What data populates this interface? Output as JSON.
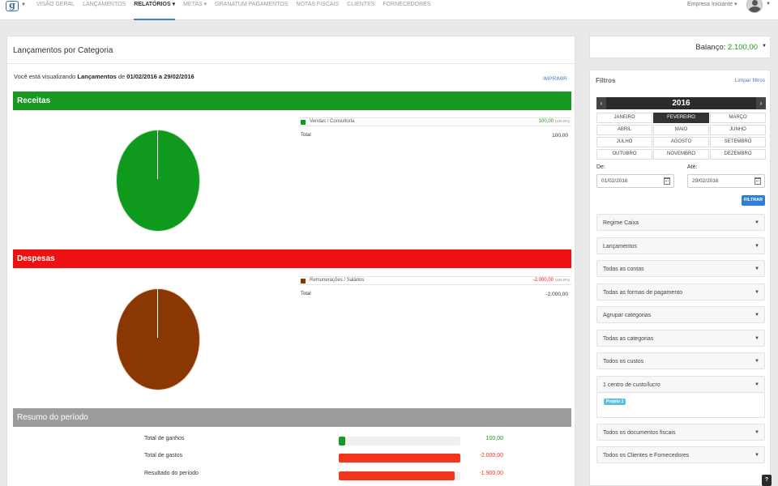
{
  "nav": {
    "logo": "g",
    "items": [
      "VISÃO GERAL",
      "LANÇAMENTOS",
      "RELATÓRIOS ▾",
      "METAS ▾",
      "GRANATUM PAGAMENTOS",
      "NOTAS FISCAIS",
      "CLIENTES",
      "FORNECEDORES"
    ],
    "active_index": 2,
    "user": "Empresa Iniciante ▾"
  },
  "report": {
    "title": "Lançamentos por Categoria",
    "period_prefix": "Você está visualizando",
    "period_report": "Lançamentos",
    "period_de": "de",
    "period_range": "01/02/2016 a 29/02/2016",
    "print": "IMPRIMIR"
  },
  "receitas": {
    "title": "Receitas",
    "legend_label": "Vendas / Consultoria",
    "legend_value": "100,00",
    "legend_pct": "(100,0%)",
    "total_label": "Total",
    "total_value": "100,00",
    "color": "#0f9a1e"
  },
  "despesas": {
    "title": "Despesas",
    "legend_label": "Remunerações / Salários",
    "legend_value": "-2.000,00",
    "legend_pct": "(100,0%)",
    "total_label": "Total",
    "total_value": "-2.000,00",
    "color": "#8a3704"
  },
  "resumo": {
    "title": "Resumo do período",
    "rows": [
      {
        "label": "Total de ganhos",
        "value": "100,00",
        "fraction": 0.05,
        "color": "#18991f"
      },
      {
        "label": "Total de gastos",
        "value": "-2.000,00",
        "fraction": 1.0,
        "color": "#f2351c"
      },
      {
        "label": "Resultado do período",
        "value": "-1.900,00",
        "fraction": 0.95,
        "color": "#f2351c"
      }
    ]
  },
  "balance": {
    "label": "Balanço:",
    "value": "2.100,00"
  },
  "filters": {
    "title": "Filtros",
    "clear": "Limpar filtros",
    "year": "2016",
    "months": [
      "JANEIRO",
      "FEVEREIRO",
      "MARÇO",
      "ABRIL",
      "MAIO",
      "JUNHO",
      "JULHO",
      "AGOSTO",
      "SETEMBRO",
      "OUTUBRO",
      "NOVEMBRO",
      "DEZEMBRO"
    ],
    "selected_month_index": 1,
    "from_label": "De:",
    "from_value": "01/02/2016",
    "to_label": "Até:",
    "to_value": "29/02/2016",
    "apply": "FILTRAR",
    "dropdowns": [
      "Regime Caixa",
      "Lançamentos",
      "Todas as contas",
      "Todas as formas de pagamento",
      "Agrupar categorias",
      "Todas as categorias",
      "Todos os custos",
      "1 centro de custo/lucro",
      "Todos os documentos fiscais",
      "Todos os Clientes e Fornecedores"
    ],
    "cost_center_tag": "Projeto 1"
  },
  "help": "?"
}
